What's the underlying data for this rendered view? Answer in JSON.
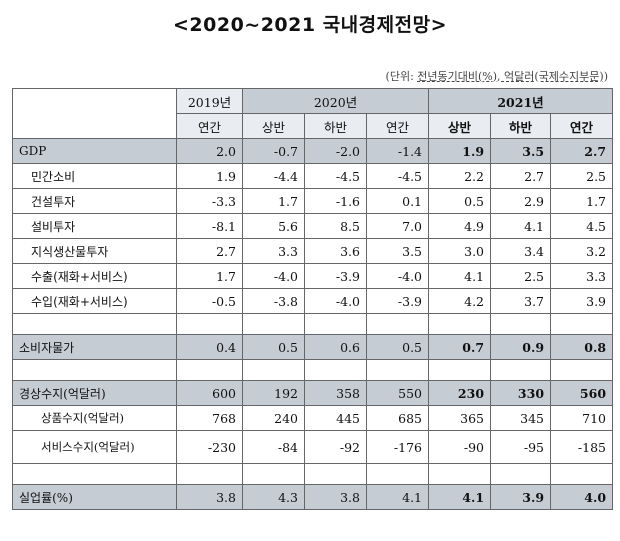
{
  "title": "<2020~2021 국내경제전망>",
  "unit_prefix": "(단위: ",
  "unit_main": "전년동기대비(%), 억달러(국제수지부문)",
  "unit_suffix": ")",
  "header": {
    "y2019": "2019년",
    "y2020": "2020년",
    "y2021": "2021년",
    "annual": "연간",
    "h1": "상반",
    "h2": "하반"
  },
  "rows": {
    "gdp": {
      "label": "GDP",
      "v": [
        "2.0",
        "-0.7",
        "-2.0",
        "-1.4",
        "1.9",
        "3.5",
        "2.7"
      ]
    },
    "cons": {
      "label": "민간소비",
      "v": [
        "1.9",
        "-4.4",
        "-4.5",
        "-4.5",
        "2.2",
        "2.7",
        "2.5"
      ]
    },
    "constr": {
      "label": "건설투자",
      "v": [
        "-3.3",
        "1.7",
        "-1.6",
        "0.1",
        "0.5",
        "2.9",
        "1.7"
      ]
    },
    "equip": {
      "label": "설비투자",
      "v": [
        "-8.1",
        "5.6",
        "8.5",
        "7.0",
        "4.9",
        "4.1",
        "4.5"
      ]
    },
    "ip": {
      "label": "지식생산물투자",
      "v": [
        "2.7",
        "3.3",
        "3.6",
        "3.5",
        "3.0",
        "3.4",
        "3.2"
      ]
    },
    "exp": {
      "label": "수출(재화+서비스)",
      "v": [
        "1.7",
        "-4.0",
        "-3.9",
        "-4.0",
        "4.1",
        "2.5",
        "3.3"
      ]
    },
    "imp": {
      "label": "수입(재화+서비스)",
      "v": [
        "-0.5",
        "-3.8",
        "-4.0",
        "-3.9",
        "4.2",
        "3.7",
        "3.9"
      ]
    },
    "cpi": {
      "label": "소비자물가",
      "v": [
        "0.4",
        "0.5",
        "0.6",
        "0.5",
        "0.7",
        "0.9",
        "0.8"
      ]
    },
    "ca": {
      "label": "경상수지(억달러)",
      "v": [
        "600",
        "192",
        "358",
        "550",
        "230",
        "330",
        "560"
      ]
    },
    "goods": {
      "label": "상품수지(억달러)",
      "v": [
        "768",
        "240",
        "445",
        "685",
        "365",
        "345",
        "710"
      ]
    },
    "svc": {
      "label": "서비스수지(억달러)",
      "v": [
        "-230",
        "-84",
        "-92",
        "-176",
        "-90",
        "-95",
        "-185"
      ]
    },
    "unemp": {
      "label": "실업률(%)",
      "v": [
        "3.8",
        "4.3",
        "3.8",
        "4.1",
        "4.1",
        "3.9",
        "4.0"
      ]
    }
  }
}
